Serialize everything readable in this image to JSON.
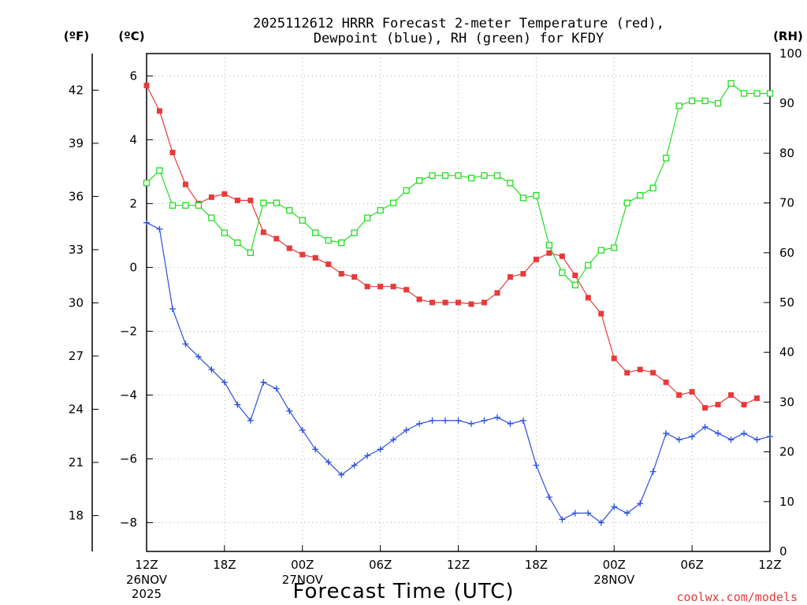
{
  "title": {
    "line1": "2025112612 HRRR Forecast 2-meter Temperature (red),",
    "line2": "Dewpoint (blue), RH (green) for KFDY"
  },
  "units": {
    "f": "(ºF)",
    "c": "(ºC)",
    "rh": "(RH)"
  },
  "x_axis": {
    "label": "Forecast Time (UTC)",
    "ticks": [
      {
        "hour": 0,
        "label": "12Z",
        "sub1": "26NOV",
        "sub2": "2025"
      },
      {
        "hour": 6,
        "label": "18Z",
        "sub1": "",
        "sub2": ""
      },
      {
        "hour": 12,
        "label": "00Z",
        "sub1": "27NOV",
        "sub2": ""
      },
      {
        "hour": 18,
        "label": "06Z",
        "sub1": "",
        "sub2": ""
      },
      {
        "hour": 24,
        "label": "12Z",
        "sub1": "",
        "sub2": ""
      },
      {
        "hour": 30,
        "label": "18Z",
        "sub1": "",
        "sub2": ""
      },
      {
        "hour": 36,
        "label": "00Z",
        "sub1": "28NOV",
        "sub2": ""
      },
      {
        "hour": 42,
        "label": "06Z",
        "sub1": "",
        "sub2": ""
      },
      {
        "hour": 48,
        "label": "12Z",
        "sub1": "",
        "sub2": ""
      }
    ],
    "range_hours": [
      0,
      48
    ]
  },
  "credit": "coolwx.com/models",
  "colors": {
    "temperature": "#e83a3a",
    "dewpoint": "#2b4fe0",
    "rh": "#22dd22",
    "credit": "#e23b3b"
  },
  "chart_data": {
    "type": "line",
    "title": "2025112612 HRRR Forecast 2-meter Temperature (red), Dewpoint (blue), RH (green) for KFDY",
    "xlabel": "Forecast Time (UTC)",
    "x_unit": "forecast hour from 2025-11-26 12Z",
    "x": [
      0,
      1,
      2,
      3,
      4,
      5,
      6,
      7,
      8,
      9,
      10,
      11,
      12,
      13,
      14,
      15,
      16,
      17,
      18,
      19,
      20,
      21,
      22,
      23,
      24,
      25,
      26,
      27,
      28,
      29,
      30,
      31,
      32,
      33,
      34,
      35,
      36,
      37,
      38,
      39,
      40,
      41,
      42,
      43,
      44,
      45,
      46,
      47,
      48
    ],
    "y_left": {
      "label": "(ºC)",
      "range": [
        -8.9,
        6.7
      ],
      "ticks": [
        -8,
        -6,
        -4,
        -2,
        0,
        2,
        4,
        6
      ]
    },
    "y_left_f": {
      "label": "(ºF)",
      "ticks": [
        18,
        21,
        24,
        27,
        30,
        33,
        36,
        39,
        42
      ]
    },
    "y_right": {
      "label": "(RH)",
      "range": [
        0,
        100
      ],
      "ticks": [
        0,
        10,
        20,
        30,
        40,
        50,
        60,
        70,
        80,
        90,
        100
      ]
    },
    "grid": true,
    "series": [
      {
        "name": "Temperature (red)",
        "axis": "celsius",
        "marker": "filled-square",
        "values": [
          5.7,
          4.9,
          3.6,
          2.6,
          2.0,
          2.2,
          2.3,
          2.1,
          2.1,
          1.1,
          0.9,
          0.6,
          0.4,
          0.3,
          0.1,
          -0.2,
          -0.3,
          -0.6,
          -0.6,
          -0.6,
          -0.7,
          -1.0,
          -1.1,
          -1.1,
          -1.1,
          -1.15,
          -1.1,
          -0.8,
          -0.3,
          -0.2,
          0.25,
          0.45,
          0.35,
          -0.25,
          -0.95,
          -1.45,
          -2.85,
          -3.3,
          -3.2,
          -3.3,
          -3.6,
          -4.0,
          -3.9,
          -4.4,
          -4.3,
          -4.0,
          -4.3,
          -4.1,
          null
        ]
      },
      {
        "name": "Dewpoint (blue)",
        "axis": "celsius",
        "marker": "plus",
        "values": [
          1.4,
          1.2,
          -1.3,
          -2.4,
          -2.8,
          -3.2,
          -3.6,
          -4.3,
          -4.8,
          -3.6,
          -3.8,
          -4.5,
          -5.1,
          -5.7,
          -6.1,
          -6.5,
          -6.2,
          -5.9,
          -5.7,
          -5.4,
          -5.1,
          -4.9,
          -4.8,
          -4.8,
          -4.8,
          -4.9,
          -4.8,
          -4.7,
          -4.9,
          -4.8,
          -6.2,
          -7.2,
          -7.9,
          -7.7,
          -7.7,
          -8.0,
          -7.5,
          -7.7,
          -7.4,
          -6.4,
          -5.2,
          -5.4,
          -5.3,
          -5.0,
          -5.2,
          -5.4,
          -5.2,
          -5.4,
          -5.3
        ]
      },
      {
        "name": "RH (green)",
        "axis": "rh",
        "marker": "open-square",
        "values": [
          74,
          76.5,
          69.5,
          69.5,
          69.5,
          67,
          64,
          62,
          60,
          70,
          70,
          68.5,
          66.5,
          64,
          62.5,
          62,
          64,
          67,
          68.5,
          70,
          72.5,
          74.5,
          75.5,
          75.5,
          75.5,
          75,
          75.5,
          75.5,
          74,
          71,
          71.5,
          61.5,
          56,
          53.5,
          57.5,
          60.5,
          61,
          70,
          71.5,
          73,
          79,
          89.5,
          90.5,
          90.5,
          90,
          94,
          92,
          92,
          92
        ]
      }
    ]
  }
}
